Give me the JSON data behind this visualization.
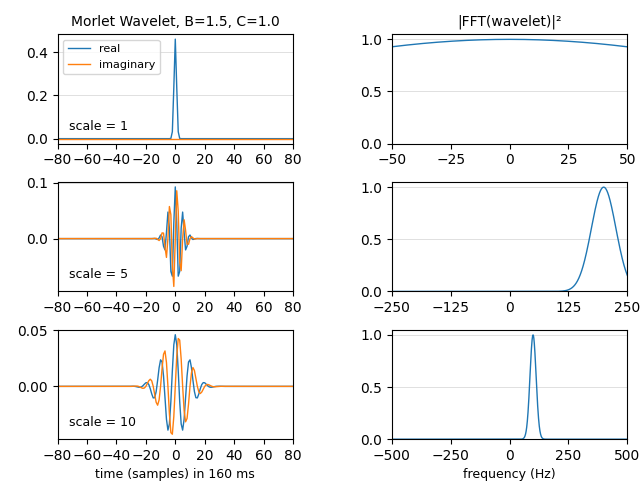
{
  "title_left": "Morlet Wavelet, B=1.5, C=1.0",
  "title_right": "|FFT(wavelet)|²",
  "B": 1.5,
  "C": 1.0,
  "scales": [
    1,
    5,
    10
  ],
  "t_half": 80,
  "color_real": "#1f77b4",
  "color_imag": "#ff7f0e",
  "legend_real": "real",
  "legend_imag": "imaginary",
  "xlabel_left": "time (samples) in 160 ms",
  "xlabel_right": "frequency (Hz)",
  "scale_label_prefix": "scale = ",
  "figsize": [
    6.4,
    4.88
  ],
  "dpi": 100
}
